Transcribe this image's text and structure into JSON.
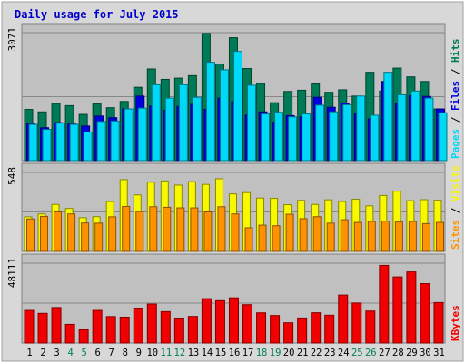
{
  "colors": {
    "hits": "#007a56",
    "files": "#0000e0",
    "pages": "#00d8f8",
    "visits": "#f8f800",
    "sites": "#ff9200",
    "kbytes": "#f00000",
    "title": "#0000cc",
    "weekend_day": "#00805a",
    "weekday_day": "#000000",
    "plot_bg": "#c0c0c0",
    "frame_bg": "#d8d8d8"
  },
  "chart_data": {
    "title": "Daily usage for July 2015",
    "type": "bar",
    "categories": [
      "1",
      "2",
      "3",
      "4",
      "5",
      "6",
      "7",
      "8",
      "9",
      "10",
      "11",
      "12",
      "13",
      "14",
      "15",
      "16",
      "17",
      "18",
      "19",
      "20",
      "21",
      "22",
      "23",
      "24",
      "25",
      "26",
      "27",
      "28",
      "29",
      "30",
      "31"
    ],
    "weekend_days": [
      4,
      5,
      11,
      12,
      18,
      19,
      25,
      26
    ],
    "panels": [
      {
        "name": "hits-files-pages",
        "ymax": 3071,
        "ymax_label": "3071",
        "right_labels": [
          "Pages",
          " / ",
          "Files",
          " / ",
          "Hits"
        ],
        "right_colors": [
          "pages",
          "text",
          "files",
          "text",
          "hits"
        ],
        "series": [
          {
            "name": "Hits",
            "color": "hits",
            "values": [
              1230,
              1170,
              1370,
              1320,
              1110,
              1360,
              1270,
              1420,
              1760,
              2200,
              1950,
              1980,
              2040,
              3050,
              2320,
              2950,
              2210,
              1850,
              1390,
              1660,
              1690,
              1840,
              1640,
              1700,
              1550,
              2120,
              1670,
              2220,
              2010,
              1900,
              1240
            ]
          },
          {
            "name": "Files",
            "color": "files",
            "values": [
              890,
              790,
              910,
              880,
              830,
              1070,
              1030,
              1240,
              1550,
              1310,
              1210,
              1300,
              1350,
              1230,
              1500,
              1410,
              1090,
              1170,
              920,
              1080,
              1050,
              1520,
              1280,
              1380,
              1120,
              1000,
              1900,
              1380,
              1560,
              1540,
              1240
            ]
          },
          {
            "name": "Pages",
            "color": "pages",
            "values": [
              870,
              750,
              900,
              870,
              690,
              940,
              950,
              1240,
              1260,
              1820,
              1500,
              1820,
              1520,
              2360,
              2180,
              2620,
              1810,
              1120,
              1160,
              1050,
              1120,
              1330,
              1170,
              1340,
              1550,
              1090,
              2120,
              1580,
              1670,
              1500,
              1150
            ]
          }
        ]
      },
      {
        "name": "visits-sites",
        "ymax": 548,
        "ymax_label": "548",
        "right_labels": [
          "Sites",
          " / ",
          "Visits"
        ],
        "right_colors": [
          "sites",
          "text",
          "visits"
        ],
        "series": [
          {
            "name": "Visits",
            "color": "visits",
            "values": [
              240,
              260,
              326,
              298,
              234,
              241,
              346,
              498,
              392,
              480,
              489,
              460,
              484,
              465,
              504,
              399,
              408,
              370,
              368,
              324,
              354,
              326,
              358,
              346,
              362,
              316,
              388,
              418,
              352,
              359,
              355
            ]
          },
          {
            "name": "Sites",
            "color": "sites",
            "values": [
              225,
              243,
              274,
              260,
              197,
              196,
              240,
              312,
              276,
              310,
              306,
              302,
              302,
              274,
              310,
              260,
              164,
              182,
              178,
              258,
              227,
              241,
              196,
              220,
              201,
              208,
              210,
              204,
              208,
              193,
              201
            ]
          }
        ]
      },
      {
        "name": "kbytes",
        "ymax": 48111,
        "ymax_label": "48111",
        "right_labels": [
          "KBytes"
        ],
        "right_colors": [
          "kbytes"
        ],
        "series": [
          {
            "name": "KBytes",
            "color": "kbytes",
            "values": [
              19650,
              17880,
              21390,
              11250,
              8020,
              19650,
              15940,
              15580,
              21030,
              23480,
              18940,
              15050,
              16030,
              26730,
              25510,
              27220,
              23120,
              18200,
              16590,
              12200,
              15090,
              18250,
              16770,
              28910,
              24120,
              19280,
              46780,
              39840,
              42870,
              35810,
              24390
            ]
          }
        ]
      }
    ]
  }
}
